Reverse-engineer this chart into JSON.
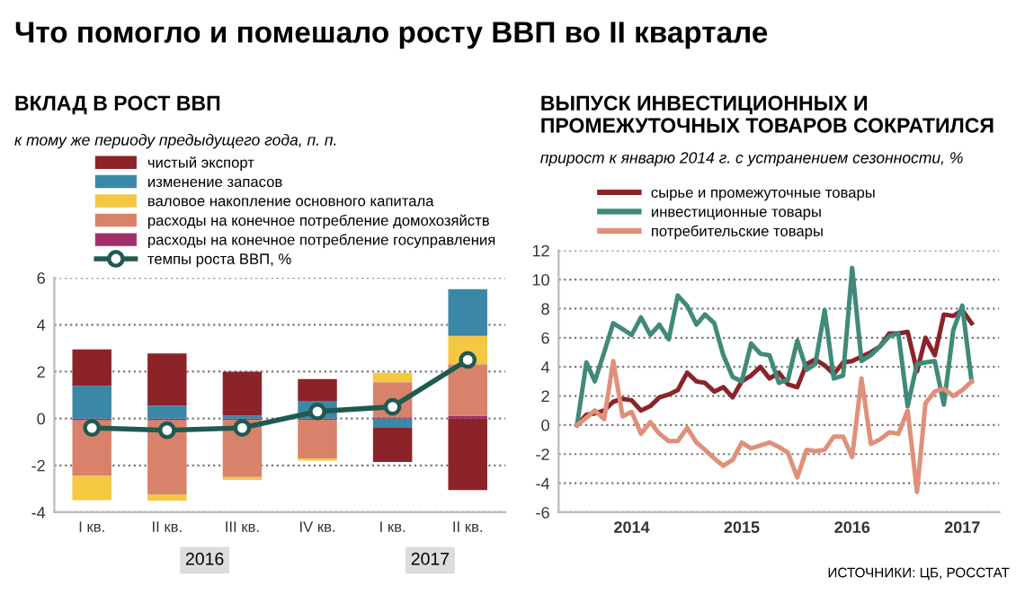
{
  "chart_data": [
    {
      "type": "other",
      "title": "Что помогло и помешало росту ВВП во II квартале"
    },
    {
      "type": "bar",
      "stacked": true,
      "title": "ВКЛАД В РОСТ ВВП",
      "subtitle": "к тому же периоду предыдущего года, п. п.",
      "categories": [
        "I кв.",
        "II кв.",
        "III кв.",
        "IV кв.",
        "I кв.",
        "II кв."
      ],
      "annotations": [
        "2016",
        "2017"
      ],
      "series": [
        {
          "name": "расходы на конечное потребление госуправления",
          "color": "#a0306a",
          "values": [
            -0.08,
            -0.08,
            -0.05,
            -0.05,
            0.05,
            0.12
          ]
        },
        {
          "name": "расходы на конечное потребление домохозяйств",
          "color": "#d9826b",
          "values": [
            -2.37,
            -3.17,
            -2.45,
            -1.65,
            1.5,
            2.2
          ]
        },
        {
          "name": "валовое накопление основного капитала",
          "color": "#f5c842",
          "values": [
            -1.03,
            -0.25,
            -0.12,
            -0.1,
            0.4,
            1.2
          ]
        },
        {
          "name": "изменение запасов",
          "color": "#3a88a5",
          "values": [
            1.4,
            0.55,
            0.12,
            0.75,
            -0.4,
            2.0
          ]
        },
        {
          "name": "чистый экспорт",
          "color": "#8b2328",
          "values": [
            1.55,
            2.23,
            1.88,
            0.93,
            -1.45,
            -3.05
          ]
        },
        {
          "name": "темпы роста ВВП, %",
          "type": "line",
          "color": "#1f5a50",
          "values": [
            -0.4,
            -0.5,
            -0.4,
            0.3,
            0.5,
            2.5
          ]
        }
      ],
      "marker": "circle",
      "ylim": [
        -4,
        6
      ],
      "yticks": [
        -4,
        -2,
        0,
        2,
        4,
        6
      ],
      "grid": "y",
      "legend": "top left"
    },
    {
      "type": "line",
      "title": "ВЫПУСК ИНВЕСТИЦИОННЫХ И ПРОМЕЖУТОЧНЫХ ТОВАРОВ СОКРАТИЛСЯ",
      "subtitle": "прирост к январю 2014 г. с устранением сезонности, %",
      "x": [
        "2014-01",
        "2014-02",
        "2014-03",
        "2014-04",
        "2014-05",
        "2014-06",
        "2014-07",
        "2014-08",
        "2014-09",
        "2014-10",
        "2014-11",
        "2014-12",
        "2015-01",
        "2015-02",
        "2015-03",
        "2015-04",
        "2015-05",
        "2015-06",
        "2015-07",
        "2015-08",
        "2015-09",
        "2015-10",
        "2015-11",
        "2015-12",
        "2016-01",
        "2016-02",
        "2016-03",
        "2016-04",
        "2016-05",
        "2016-06",
        "2016-07",
        "2016-08",
        "2016-09",
        "2016-10",
        "2016-11",
        "2016-12",
        "2017-01",
        "2017-02",
        "2017-03",
        "2017-04",
        "2017-05",
        "2017-06",
        "2017-07",
        "2017-08"
      ],
      "series": [
        {
          "name": "сырье и промежуточные товары",
          "color": "#8b2328",
          "values": [
            0,
            0.7,
            0.8,
            1.0,
            1.6,
            1.8,
            1.7,
            1.0,
            1.3,
            1.9,
            2.1,
            2.4,
            3.6,
            3.0,
            2.9,
            2.3,
            2.6,
            1.9,
            3.0,
            3.4,
            4.0,
            3.2,
            3.6,
            2.8,
            2.6,
            4.2,
            4.5,
            4.1,
            3.5,
            4.3,
            4.4,
            4.7,
            5.0,
            5.4,
            6.3,
            6.3,
            6.4,
            3.7,
            6.0,
            4.8,
            7.6,
            7.5,
            7.9,
            7.0
          ]
        },
        {
          "name": "инвестиционные товары",
          "color": "#3f8a78",
          "values": [
            0,
            4.3,
            3.0,
            5.0,
            7.0,
            6.6,
            6.2,
            7.4,
            6.2,
            6.9,
            5.9,
            8.9,
            8.2,
            6.9,
            7.6,
            7.0,
            4.8,
            3.3,
            3.0,
            5.6,
            4.9,
            4.8,
            2.9,
            3.1,
            5.8,
            3.8,
            4.2,
            7.9,
            3.2,
            3.4,
            10.8,
            4.4,
            4.8,
            5.4,
            6.1,
            6.3,
            1.3,
            4.2,
            4.3,
            4.4,
            1.4,
            6.5,
            8.2,
            3.0
          ]
        },
        {
          "name": "потребительские товары",
          "color": "#e0907a",
          "values": [
            0,
            0.5,
            1.0,
            0.4,
            4.4,
            0.6,
            0.9,
            -0.6,
            0.2,
            -0.6,
            -1.1,
            -1.1,
            -0.2,
            -1.2,
            -1.7,
            -2.3,
            -2.8,
            -2.4,
            -1.2,
            -1.6,
            -1.4,
            -1.2,
            -1.5,
            -1.9,
            -3.6,
            -1.7,
            -1.8,
            -1.7,
            -0.8,
            -0.8,
            -2.2,
            3.2,
            -1.3,
            -1.0,
            -0.5,
            -0.6,
            1.0,
            -4.6,
            1.5,
            2.3,
            2.5,
            2.0,
            2.4,
            3.0
          ]
        }
      ],
      "xlim": [
        "2013-11",
        "2017-11"
      ],
      "xticks": [
        {
          "value": "2014-07",
          "label": "2014"
        },
        {
          "value": "2015-07",
          "label": "2015"
        },
        {
          "value": "2016-07",
          "label": "2016"
        },
        {
          "value": "2017-07",
          "label": "2017"
        }
      ],
      "ylim": [
        -6,
        12
      ],
      "yticks": [
        -6,
        -4,
        -2,
        0,
        2,
        4,
        6,
        8,
        10,
        12
      ],
      "grid": "y",
      "legend": "top left",
      "annotations": [
        "ИСТОЧНИКИ: ЦБ, РОССТАТ"
      ]
    }
  ]
}
